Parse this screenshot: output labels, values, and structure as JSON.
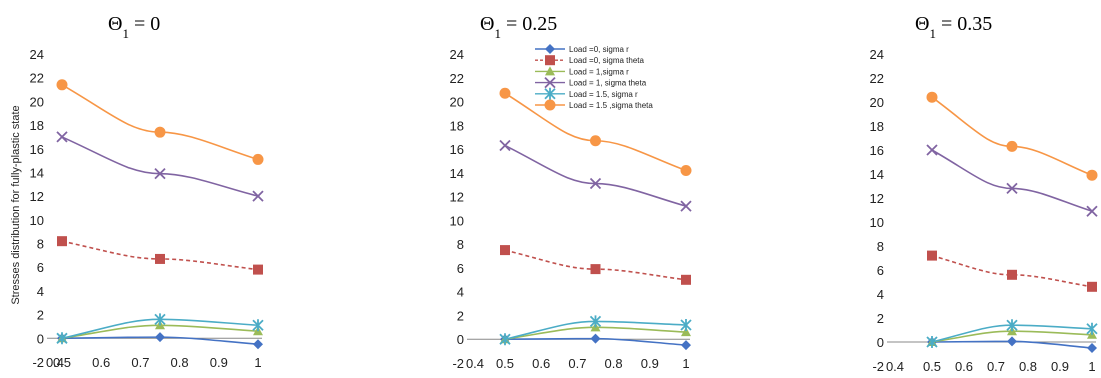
{
  "ylabel": "Stresses distribution for fully-plastic state",
  "colors": {
    "load0_r": "#4472C4",
    "load0_theta": "#C0504D",
    "load1_r": "#9BBB59",
    "load1_theta": "#8064A2",
    "load15_r": "#4BACC6",
    "load15_theta": "#F79646"
  },
  "chart_data": [
    {
      "type": "line",
      "title_sym": "Θ",
      "title_sub": "1",
      "title_rest": " = 0",
      "x": [
        0.5,
        0.75,
        1
      ],
      "xlim": [
        0.4,
        1
      ],
      "ylim": [
        -2,
        24
      ],
      "xticks": [
        "0.4",
        "0.5",
        "0.6",
        "0.7",
        "0.8",
        "0.9",
        "1"
      ],
      "yticks": [
        "-2",
        "0",
        "2",
        "4",
        "6",
        "8",
        "10",
        "12",
        "14",
        "16",
        "18",
        "20",
        "22",
        "24"
      ],
      "show_legend": false,
      "series": [
        {
          "name": "Load =0, sigma r",
          "marker": "diamond",
          "dash": false,
          "values": [
            0,
            0.1,
            -0.5
          ]
        },
        {
          "name": "Load =0, sigma theta",
          "marker": "square",
          "dash": true,
          "values": [
            8.2,
            6.7,
            5.8
          ]
        },
        {
          "name": "Load = 1,sigma r",
          "marker": "triangle",
          "dash": false,
          "values": [
            0,
            1.1,
            0.6
          ]
        },
        {
          "name": "Load = 1, sigma theta",
          "marker": "x",
          "dash": false,
          "values": [
            17.0,
            13.9,
            12.0
          ]
        },
        {
          "name": "Load = 1.5, sigma r",
          "marker": "star",
          "dash": false,
          "values": [
            0,
            1.6,
            1.1
          ]
        },
        {
          "name": "Load = 1.5 ,sigma theta",
          "marker": "circle",
          "dash": false,
          "values": [
            21.4,
            17.4,
            15.1
          ]
        }
      ]
    },
    {
      "type": "line",
      "title_sym": "Θ",
      "title_sub": "1",
      "title_rest": " = 0.25",
      "x": [
        0.5,
        0.75,
        1
      ],
      "xlim": [
        0.4,
        1
      ],
      "ylim": [
        -2,
        24
      ],
      "xticks": [
        "0.4",
        "0.5",
        "0.6",
        "0.7",
        "0.8",
        "0.9",
        "1"
      ],
      "yticks": [
        "-2",
        "0",
        "2",
        "4",
        "6",
        "8",
        "10",
        "12",
        "14",
        "16",
        "18",
        "20",
        "22",
        "24"
      ],
      "show_legend": true,
      "series": [
        {
          "name": "Load =0, sigma r",
          "marker": "diamond",
          "dash": false,
          "values": [
            0,
            0.05,
            -0.5
          ]
        },
        {
          "name": "Load =0, sigma theta",
          "marker": "square",
          "dash": true,
          "values": [
            7.5,
            5.9,
            5.0
          ]
        },
        {
          "name": "Load = 1,sigma r",
          "marker": "triangle",
          "dash": false,
          "values": [
            0,
            1.0,
            0.6
          ]
        },
        {
          "name": "Load = 1, sigma theta",
          "marker": "x",
          "dash": false,
          "values": [
            16.3,
            13.1,
            11.2
          ]
        },
        {
          "name": "Load = 1.5, sigma r",
          "marker": "star",
          "dash": false,
          "values": [
            0,
            1.5,
            1.2
          ]
        },
        {
          "name": "Load = 1.5 ,sigma theta",
          "marker": "circle",
          "dash": false,
          "values": [
            20.7,
            16.7,
            14.2
          ]
        }
      ]
    },
    {
      "type": "line",
      "title_sym": "Θ",
      "title_sub": "1",
      "title_rest": " = 0.35",
      "x": [
        0.5,
        0.75,
        1
      ],
      "xlim": [
        0.4,
        1
      ],
      "ylim": [
        -2,
        24
      ],
      "xticks": [
        "0.4",
        "0.5",
        "0.6",
        "0.7",
        "0.8",
        "0.9",
        "1"
      ],
      "yticks": [
        "-2",
        "0",
        "2",
        "4",
        "6",
        "8",
        "10",
        "12",
        "14",
        "16",
        "18",
        "20",
        "22",
        "24"
      ],
      "show_legend": false,
      "series": [
        {
          "name": "Load =0, sigma r",
          "marker": "diamond",
          "dash": false,
          "values": [
            0,
            0.05,
            -0.5
          ]
        },
        {
          "name": "Load =0, sigma theta",
          "marker": "square",
          "dash": true,
          "values": [
            7.2,
            5.6,
            4.6
          ]
        },
        {
          "name": "Load = 1,sigma r",
          "marker": "triangle",
          "dash": false,
          "values": [
            0,
            0.9,
            0.6
          ]
        },
        {
          "name": "Load = 1, sigma theta",
          "marker": "x",
          "dash": false,
          "values": [
            16.0,
            12.8,
            10.9
          ]
        },
        {
          "name": "Load = 1.5, sigma r",
          "marker": "star",
          "dash": false,
          "values": [
            0,
            1.4,
            1.1
          ]
        },
        {
          "name": "Load = 1.5 ,sigma theta",
          "marker": "circle",
          "dash": false,
          "values": [
            20.4,
            16.3,
            13.9
          ]
        }
      ]
    }
  ]
}
